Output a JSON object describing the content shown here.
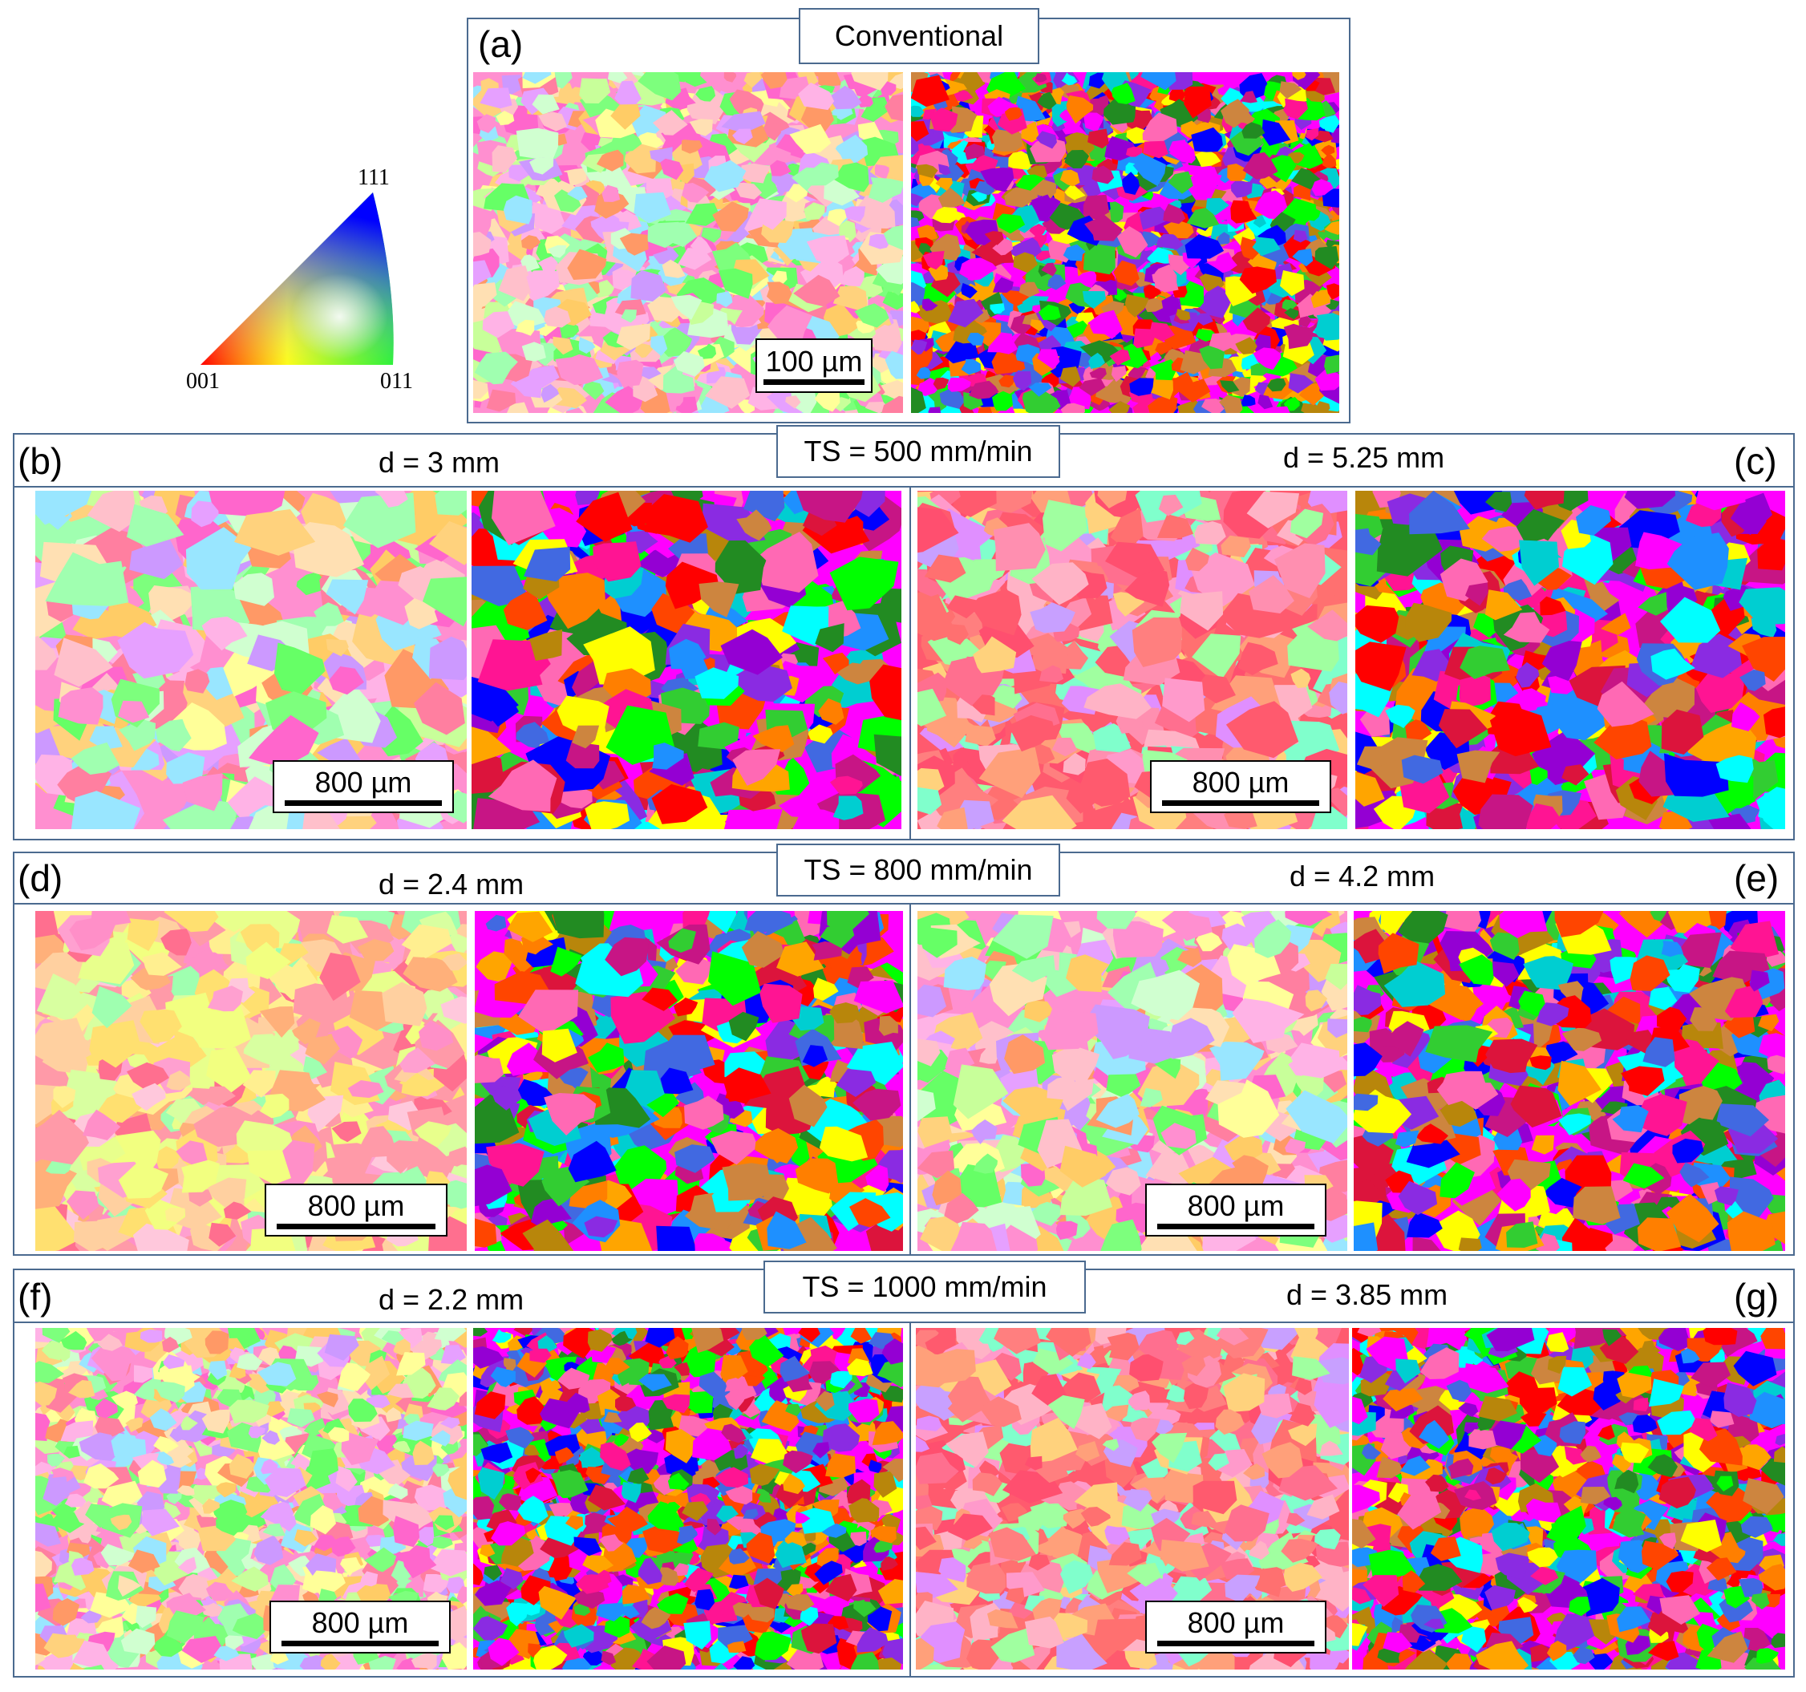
{
  "legend": {
    "pole_111": "111",
    "pole_001": "001",
    "pole_011": "011"
  },
  "panel_a": {
    "letter": "(a)",
    "title": "Conventional",
    "scale_label": "100 µm"
  },
  "row_500": {
    "speed_label": "TS = 500 mm/min",
    "left": {
      "letter": "(b)",
      "depth": "d = 3 mm",
      "scale_label": "800 µm"
    },
    "right": {
      "letter": "(c)",
      "depth": "d = 5.25 mm",
      "scale_label": "800 µm"
    }
  },
  "row_800": {
    "speed_label": "TS = 800 mm/min",
    "left": {
      "letter": "(d)",
      "depth": "d = 2.4 mm",
      "scale_label": "800 µm"
    },
    "right": {
      "letter": "(e)",
      "depth": "d = 4.2 mm",
      "scale_label": "800 µm"
    }
  },
  "row_1000": {
    "speed_label": "TS = 1000 mm/min",
    "left": {
      "letter": "(f)",
      "depth": "d = 2.2 mm",
      "scale_label": "800 µm"
    },
    "right": {
      "letter": "(g)",
      "depth": "d = 3.85 mm",
      "scale_label": "800 µm"
    }
  },
  "colors": {
    "frame": "#4b6a8f"
  }
}
